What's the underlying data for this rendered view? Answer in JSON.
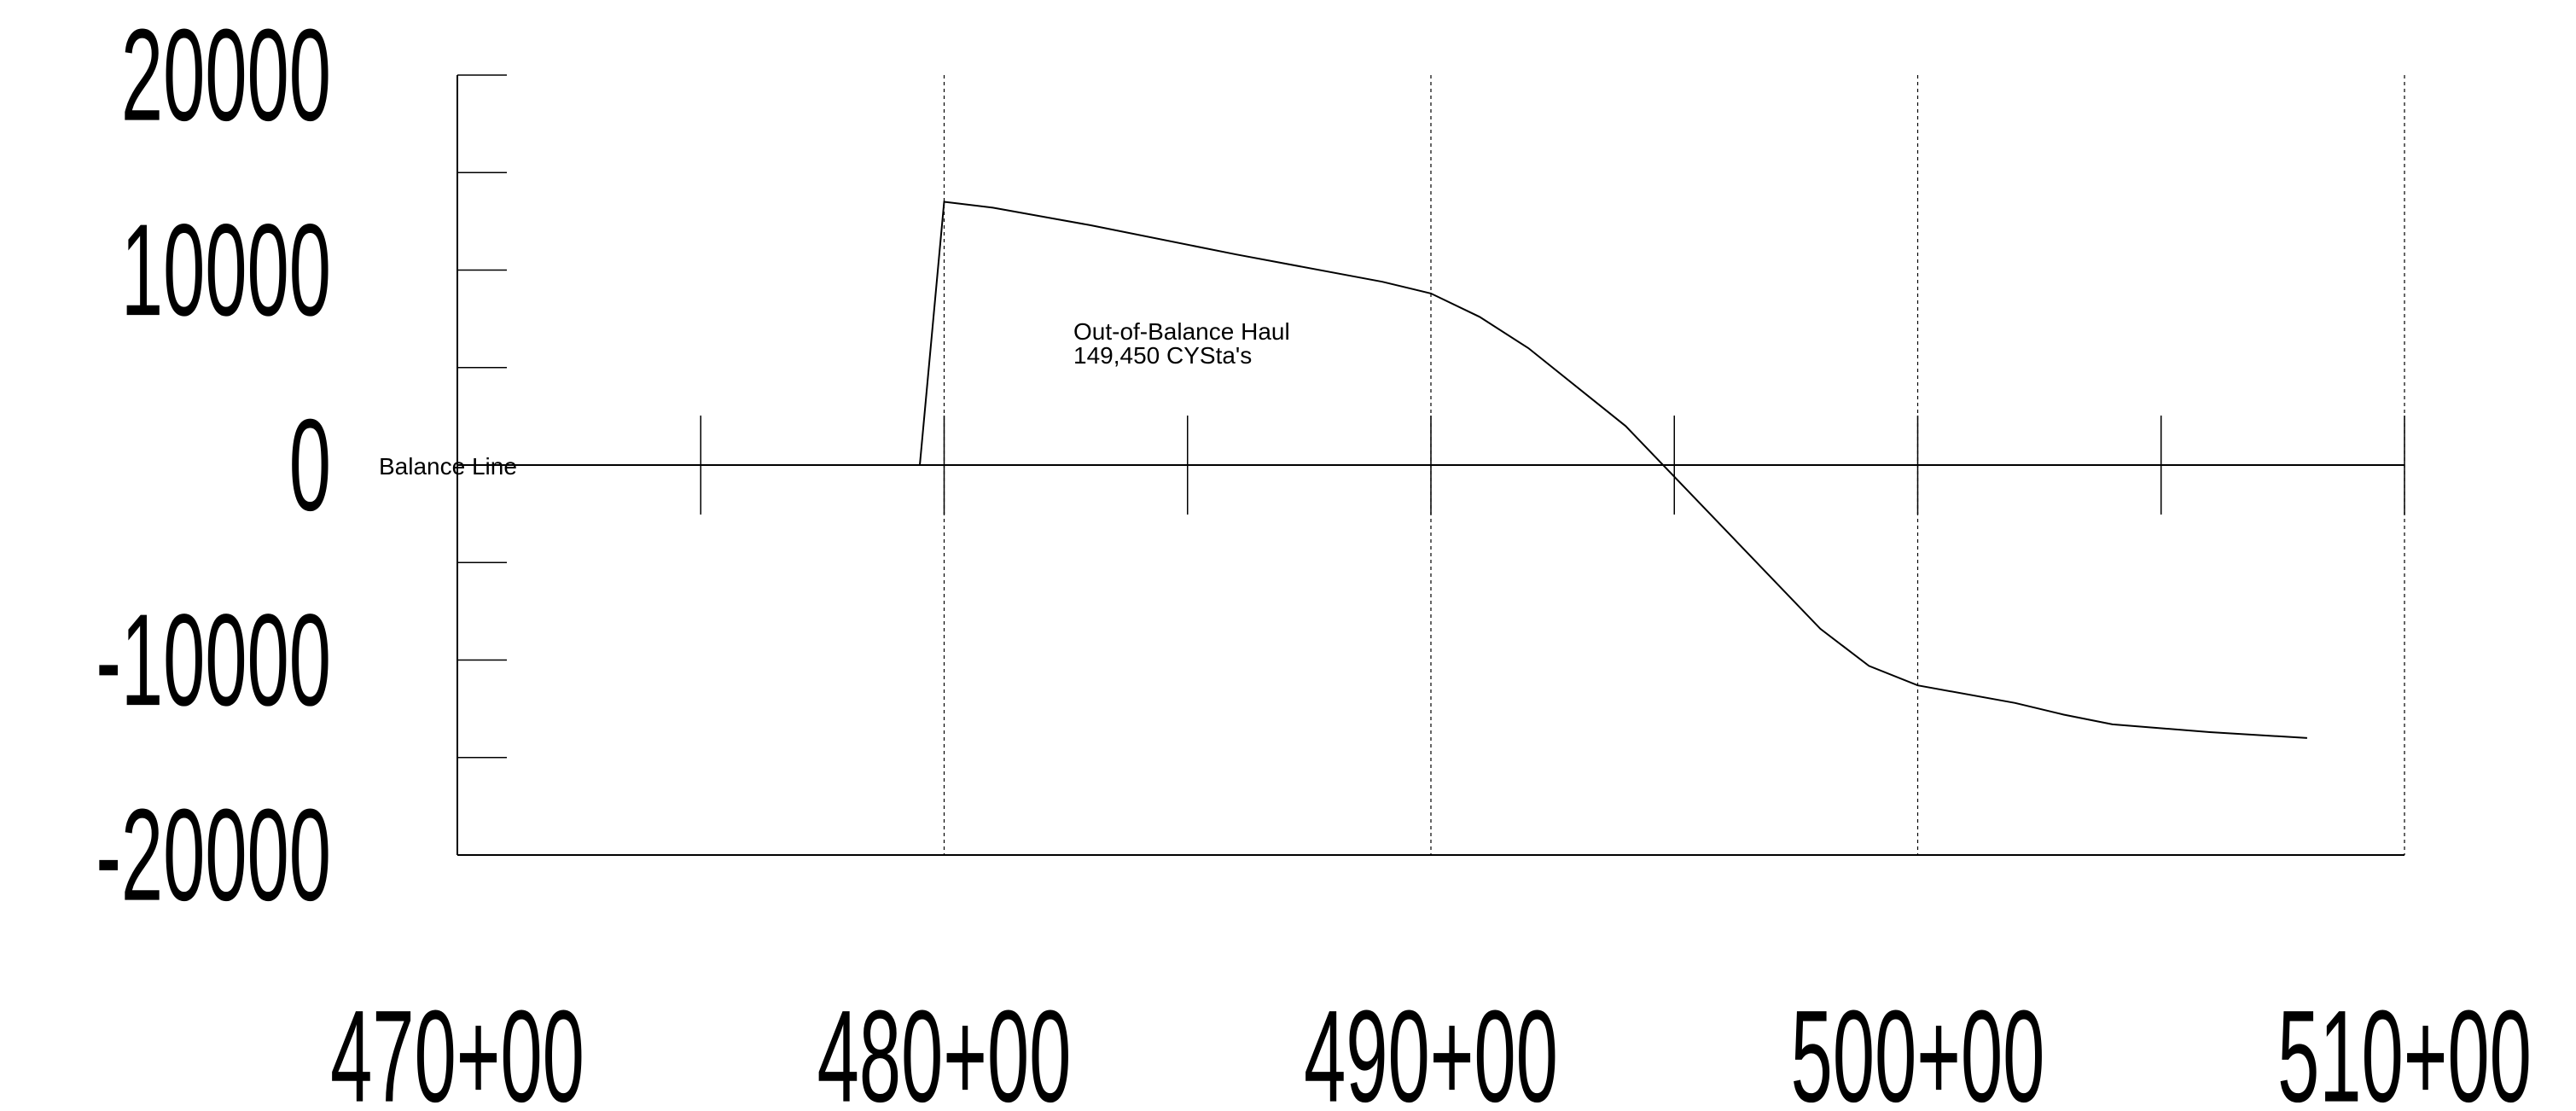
{
  "chart_data": {
    "type": "line",
    "title": "",
    "xlabel": "",
    "ylabel": "",
    "x_tick_labels": [
      "470+00",
      "480+00",
      "490+00",
      "500+00",
      "510+00"
    ],
    "x_tick_values": [
      47000,
      48000,
      49000,
      50000,
      51000
    ],
    "y_tick_labels": [
      "20000",
      "10000",
      "0",
      "-10000",
      "-20000"
    ],
    "y_tick_values": [
      20000,
      10000,
      0,
      -10000,
      -20000
    ],
    "xlim": [
      47000,
      51000
    ],
    "ylim": [
      -20000,
      20000
    ],
    "grid": "vertical dashed lines at major stations",
    "balance_line": {
      "label": "Balance Line",
      "y": 0
    },
    "annotation": {
      "lines": [
        "Out-of-Balance Haul",
        "149,450 CYSta's"
      ]
    },
    "series": [
      {
        "x": [
          47950,
          48000,
          48100,
          48300,
          48600,
          48900,
          49000,
          49100,
          49200,
          49400,
          49600,
          49800,
          49900,
          50000,
          50200,
          50300,
          50400,
          50600,
          50800
        ],
        "y": [
          0,
          13500,
          13200,
          12300,
          10800,
          9400,
          8800,
          7600,
          6000,
          2000,
          -3200,
          -8400,
          -10300,
          -11300,
          -12200,
          -12800,
          -13300,
          -13700,
          -14000
        ]
      }
    ]
  }
}
